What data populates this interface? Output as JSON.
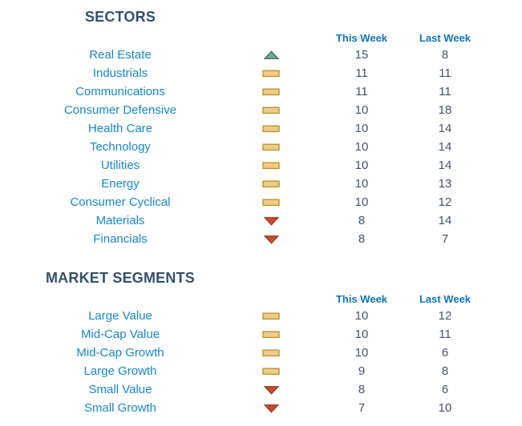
{
  "colors": {
    "section_title": "#33506F",
    "column_header": "#0E74BE",
    "row_label": "#1787C9",
    "value_text": "#44546A",
    "trend_up_fill": "#7AA98F",
    "trend_up_border": "#347060",
    "trend_flat_fill": "#EACC90",
    "trend_flat_border": "#C49520",
    "trend_down_fill": "#C24F33",
    "trend_down_border": "#A53A22"
  },
  "sections": [
    {
      "title": "SECTORS",
      "columns": {
        "this_week": "This Week",
        "last_week": "Last Week"
      },
      "rows": [
        {
          "label": "Real Estate",
          "trend": "up",
          "this_week": 15,
          "last_week": 8
        },
        {
          "label": "Industrials",
          "trend": "flat",
          "this_week": 11,
          "last_week": 11
        },
        {
          "label": "Communications",
          "trend": "flat",
          "this_week": 11,
          "last_week": 11
        },
        {
          "label": "Consumer Defensive",
          "trend": "flat",
          "this_week": 10,
          "last_week": 18
        },
        {
          "label": "Health Care",
          "trend": "flat",
          "this_week": 10,
          "last_week": 14
        },
        {
          "label": "Technology",
          "trend": "flat",
          "this_week": 10,
          "last_week": 14
        },
        {
          "label": "Utilities",
          "trend": "flat",
          "this_week": 10,
          "last_week": 14
        },
        {
          "label": "Energy",
          "trend": "flat",
          "this_week": 10,
          "last_week": 13
        },
        {
          "label": "Consumer Cyclical",
          "trend": "flat",
          "this_week": 10,
          "last_week": 12
        },
        {
          "label": "Materials",
          "trend": "down",
          "this_week": 8,
          "last_week": 14
        },
        {
          "label": "Financials",
          "trend": "down",
          "this_week": 8,
          "last_week": 7
        }
      ]
    },
    {
      "title": "MARKET SEGMENTS",
      "columns": {
        "this_week": "This Week",
        "last_week": "Last Week"
      },
      "rows": [
        {
          "label": "Large Value",
          "trend": "flat",
          "this_week": 10,
          "last_week": 12
        },
        {
          "label": "Mid-Cap Value",
          "trend": "flat",
          "this_week": 10,
          "last_week": 11
        },
        {
          "label": "Mid-Cap Growth",
          "trend": "flat",
          "this_week": 10,
          "last_week": 6
        },
        {
          "label": "Large Growth",
          "trend": "flat",
          "this_week": 9,
          "last_week": 8
        },
        {
          "label": "Small Value",
          "trend": "down",
          "this_week": 8,
          "last_week": 6
        },
        {
          "label": "Small Growth",
          "trend": "down",
          "this_week": 7,
          "last_week": 10
        }
      ]
    }
  ]
}
